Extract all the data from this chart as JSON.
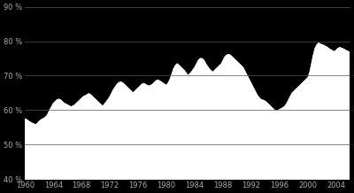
{
  "background_color": "#000000",
  "fill_color": "#ffffff",
  "line_color": "#ffffff",
  "grid_color": "#555555",
  "tick_color": "#aaaaaa",
  "text_color": "#aaaaaa",
  "ylim": [
    40,
    90
  ],
  "xlim": [
    1960,
    2006
  ],
  "yticks": [
    40,
    50,
    60,
    70,
    80,
    90
  ],
  "xticks": [
    1960,
    1964,
    1968,
    1972,
    1976,
    1980,
    1984,
    1988,
    1992,
    1996,
    2000,
    2004
  ],
  "years": [
    1960.0,
    1960.25,
    1960.5,
    1960.75,
    1961.0,
    1961.25,
    1961.5,
    1961.75,
    1962.0,
    1962.25,
    1962.5,
    1962.75,
    1963.0,
    1963.25,
    1963.5,
    1963.75,
    1964.0,
    1964.25,
    1964.5,
    1964.75,
    1965.0,
    1965.25,
    1965.5,
    1965.75,
    1966.0,
    1966.25,
    1966.5,
    1966.75,
    1967.0,
    1967.25,
    1967.5,
    1967.75,
    1968.0,
    1968.25,
    1968.5,
    1968.75,
    1969.0,
    1969.25,
    1969.5,
    1969.75,
    1970.0,
    1970.25,
    1970.5,
    1970.75,
    1971.0,
    1971.25,
    1971.5,
    1971.75,
    1972.0,
    1972.25,
    1972.5,
    1972.75,
    1973.0,
    1973.25,
    1973.5,
    1973.75,
    1974.0,
    1974.25,
    1974.5,
    1974.75,
    1975.0,
    1975.25,
    1975.5,
    1975.75,
    1976.0,
    1976.25,
    1976.5,
    1976.75,
    1977.0,
    1977.25,
    1977.5,
    1977.75,
    1978.0,
    1978.25,
    1978.5,
    1978.75,
    1979.0,
    1979.25,
    1979.5,
    1979.75,
    1980.0,
    1980.25,
    1980.5,
    1980.75,
    1981.0,
    1981.25,
    1981.5,
    1981.75,
    1982.0,
    1982.25,
    1982.5,
    1982.75,
    1983.0,
    1983.25,
    1983.5,
    1983.75,
    1984.0,
    1984.25,
    1984.5,
    1984.75,
    1985.0,
    1985.25,
    1985.5,
    1985.75,
    1986.0,
    1986.25,
    1986.5,
    1986.75,
    1987.0,
    1987.25,
    1987.5,
    1987.75,
    1988.0,
    1988.25,
    1988.5,
    1988.75,
    1989.0,
    1989.25,
    1989.5,
    1989.75,
    1990.0,
    1990.25,
    1990.5,
    1990.75,
    1991.0,
    1991.25,
    1991.5,
    1991.75,
    1992.0,
    1992.25,
    1992.5,
    1992.75,
    1993.0,
    1993.25,
    1993.5,
    1993.75,
    1994.0,
    1994.25,
    1994.5,
    1994.75,
    1995.0,
    1995.25,
    1995.5,
    1995.75,
    1996.0,
    1996.25,
    1996.5,
    1996.75,
    1997.0,
    1997.25,
    1997.5,
    1997.75,
    1998.0,
    1998.25,
    1998.5,
    1998.75,
    1999.0,
    1999.25,
    1999.5,
    1999.75,
    2000.0,
    2000.25,
    2000.5,
    2000.75,
    2001.0,
    2001.25,
    2001.5,
    2001.75,
    2002.0,
    2002.25,
    2002.5,
    2002.75,
    2003.0,
    2003.25,
    2003.5,
    2003.75,
    2004.0,
    2004.25,
    2004.5,
    2004.75,
    2005.0,
    2005.25,
    2005.5,
    2005.75
  ],
  "values": [
    57.5,
    57.2,
    56.8,
    56.5,
    56.2,
    56.0,
    55.8,
    56.2,
    56.8,
    57.2,
    57.5,
    57.8,
    58.2,
    59.0,
    60.2,
    61.0,
    62.0,
    62.5,
    63.0,
    63.2,
    63.0,
    62.5,
    62.0,
    61.8,
    61.5,
    61.2,
    61.0,
    61.2,
    61.5,
    62.0,
    62.5,
    63.0,
    63.5,
    64.0,
    64.2,
    64.5,
    64.8,
    64.5,
    64.0,
    63.5,
    63.0,
    62.5,
    62.0,
    61.5,
    61.2,
    61.8,
    62.5,
    63.2,
    64.0,
    65.0,
    66.0,
    66.8,
    67.5,
    68.0,
    68.2,
    68.0,
    67.5,
    67.0,
    66.5,
    66.0,
    65.5,
    65.0,
    65.5,
    66.0,
    66.5,
    67.0,
    67.5,
    67.8,
    67.5,
    67.2,
    67.0,
    67.2,
    67.5,
    68.0,
    68.5,
    68.8,
    68.5,
    68.2,
    67.8,
    67.5,
    67.2,
    68.0,
    69.0,
    70.5,
    72.0,
    73.0,
    73.5,
    73.0,
    72.5,
    72.0,
    71.5,
    70.8,
    70.0,
    70.5,
    71.0,
    71.8,
    72.5,
    73.5,
    74.5,
    75.0,
    75.0,
    74.5,
    73.5,
    72.8,
    72.0,
    71.5,
    71.0,
    71.5,
    72.0,
    72.5,
    73.0,
    73.5,
    74.5,
    75.5,
    76.0,
    76.2,
    76.0,
    75.5,
    75.0,
    74.5,
    74.0,
    73.5,
    73.0,
    72.5,
    71.5,
    70.5,
    69.5,
    68.5,
    67.5,
    66.5,
    65.5,
    64.5,
    63.8,
    63.2,
    63.0,
    62.8,
    62.5,
    62.0,
    61.5,
    61.0,
    60.5,
    60.0,
    59.8,
    60.0,
    60.2,
    60.5,
    60.8,
    61.2,
    62.0,
    63.0,
    64.0,
    65.0,
    65.5,
    66.0,
    66.5,
    67.0,
    67.5,
    68.0,
    68.5,
    69.0,
    69.5,
    71.0,
    73.5,
    76.0,
    78.0,
    79.0,
    79.5,
    79.2,
    79.0,
    78.8,
    78.5,
    78.2,
    77.8,
    77.5,
    77.2,
    77.0,
    77.5,
    78.0,
    78.2,
    78.0,
    77.8,
    77.5,
    77.2,
    77.0
  ]
}
